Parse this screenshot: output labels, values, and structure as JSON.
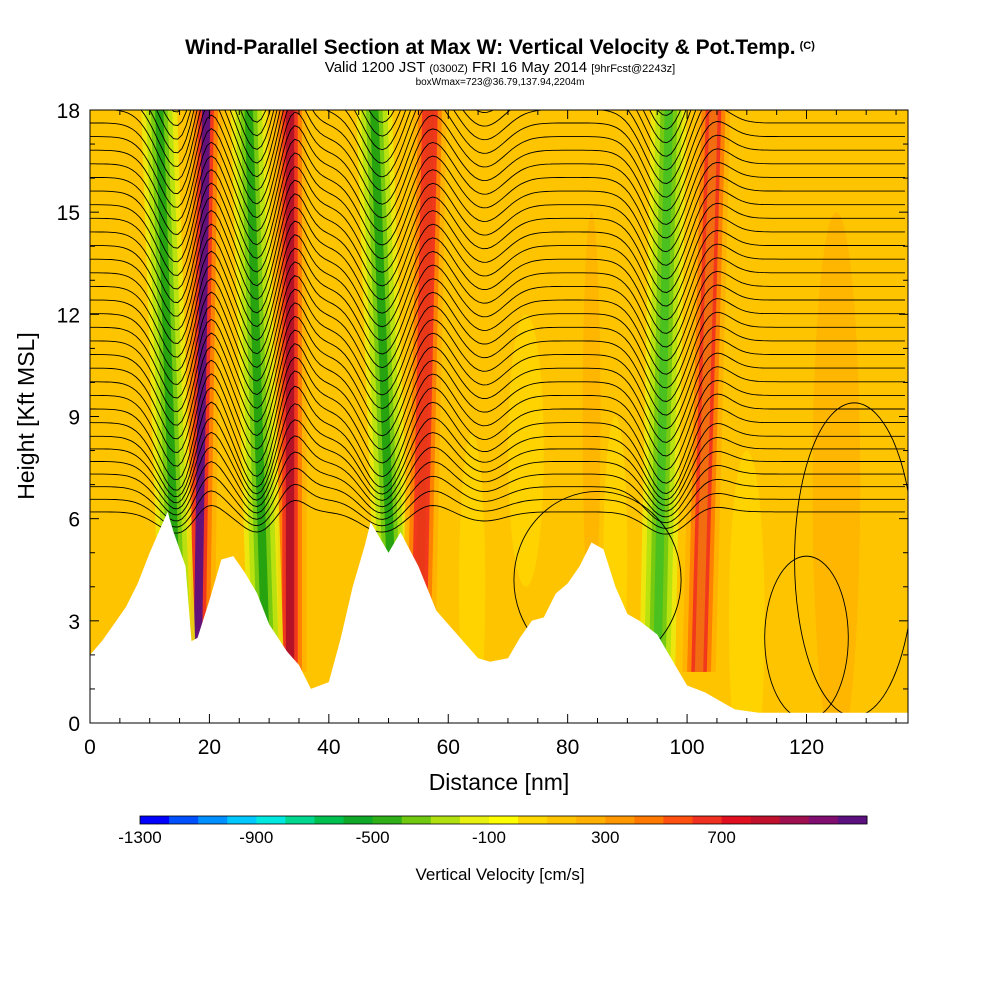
{
  "title": {
    "main": "Wind-Parallel Section at Max W: Vertical Velocity & Pot.Temp.",
    "copyright": "(C)",
    "valid_prefix": "Valid 1200 JST",
    "valid_utc": "(0300Z)",
    "valid_date": "FRI 16 May 2014",
    "forecast": "[9hrFcst@2243z]",
    "boxinfo": "boxWmax=723@36.79,137.94,2204m"
  },
  "chart_data": {
    "type": "heatmap",
    "xlabel": "Distance [nm]",
    "ylabel": "Height [Kft MSL]",
    "xlim": [
      0,
      137
    ],
    "ylim": [
      0,
      18
    ],
    "x_ticks": [
      0,
      20,
      40,
      60,
      80,
      100,
      120
    ],
    "x_tick_labels": [
      "0",
      "20",
      "40",
      "60",
      "80",
      "100",
      "120"
    ],
    "y_ticks": [
      0,
      3,
      6,
      9,
      12,
      15,
      18
    ],
    "y_tick_labels": [
      "0",
      "3",
      "6",
      "9",
      "12",
      "15",
      "18"
    ],
    "background_value": "100 to 300",
    "terrain": {
      "x": [
        0,
        2,
        4,
        6,
        8,
        10,
        13,
        14,
        16,
        17,
        18,
        20,
        22,
        24,
        26,
        28,
        30,
        33,
        35,
        37,
        40,
        42,
        44,
        46,
        47,
        50,
        52,
        55,
        58,
        60,
        63,
        65,
        67,
        70,
        72,
        74,
        76,
        78,
        80,
        82,
        84,
        86,
        88,
        90,
        92,
        95,
        98,
        100,
        103,
        106,
        108,
        112,
        120,
        130,
        137
      ],
      "y": [
        2.0,
        2.4,
        2.9,
        3.4,
        4.1,
        5.0,
        6.2,
        5.6,
        4.6,
        2.4,
        2.5,
        3.6,
        4.8,
        4.9,
        4.4,
        3.8,
        2.9,
        2.1,
        1.7,
        1.0,
        1.2,
        2.5,
        4.0,
        5.2,
        5.9,
        5.0,
        5.6,
        4.6,
        3.3,
        2.9,
        2.3,
        1.9,
        1.8,
        1.9,
        2.5,
        3.0,
        3.1,
        3.8,
        4.1,
        4.6,
        5.3,
        5.1,
        4.0,
        3.2,
        3.0,
        2.6,
        1.7,
        1.1,
        0.9,
        0.6,
        0.4,
        0.3,
        0.3,
        0.3,
        0.3
      ]
    },
    "bands": [
      {
        "kind": "updraft",
        "x_top": 19.5,
        "x_base": 18.0,
        "value": 800,
        "color": "#5c1080"
      },
      {
        "kind": "downdraft",
        "x_top": 11.5,
        "x_base": 14.8,
        "value": -500,
        "color": "#22a010"
      },
      {
        "kind": "updraft",
        "x_top": 33.5,
        "x_base": 33.5,
        "value": 700,
        "color": "#b01028"
      },
      {
        "kind": "downdraft",
        "x_top": 26.5,
        "x_base": 29.5,
        "value": -500,
        "color": "#22a010"
      },
      {
        "kind": "downdraft",
        "x_top": 47.5,
        "x_base": 51.0,
        "value": -500,
        "color": "#22a010"
      },
      {
        "kind": "updraft",
        "x_top": 57.0,
        "x_base": 55.0,
        "value": 500,
        "color": "#e83818"
      },
      {
        "kind": "downdraft",
        "x_top": 97.0,
        "x_base": 95.0,
        "value": -400,
        "color": "#48c020"
      },
      {
        "kind": "updraft",
        "x_top": 104.5,
        "x_base": 102.0,
        "value": 300,
        "color": "#f07010"
      }
    ],
    "colorbar": {
      "label": "Vertical Velocity [cm/s]",
      "tick_labels": [
        "-1300",
        "-900",
        "-500",
        "-100",
        "300",
        "700"
      ],
      "tick_values": [
        -1300,
        -900,
        -500,
        -100,
        300,
        700
      ],
      "colors": [
        "#0000ff",
        "#0050ff",
        "#0090ff",
        "#00c8ff",
        "#00e8e0",
        "#00d890",
        "#00c050",
        "#10a828",
        "#30b018",
        "#70c810",
        "#b0e010",
        "#e8f010",
        "#ffff00",
        "#ffd800",
        "#ffc400",
        "#ffb000",
        "#ff9800",
        "#ff7800",
        "#ff5010",
        "#f03020",
        "#e01020",
        "#c0102c",
        "#a01050",
        "#800e70",
        "#5c1080"
      ]
    }
  }
}
